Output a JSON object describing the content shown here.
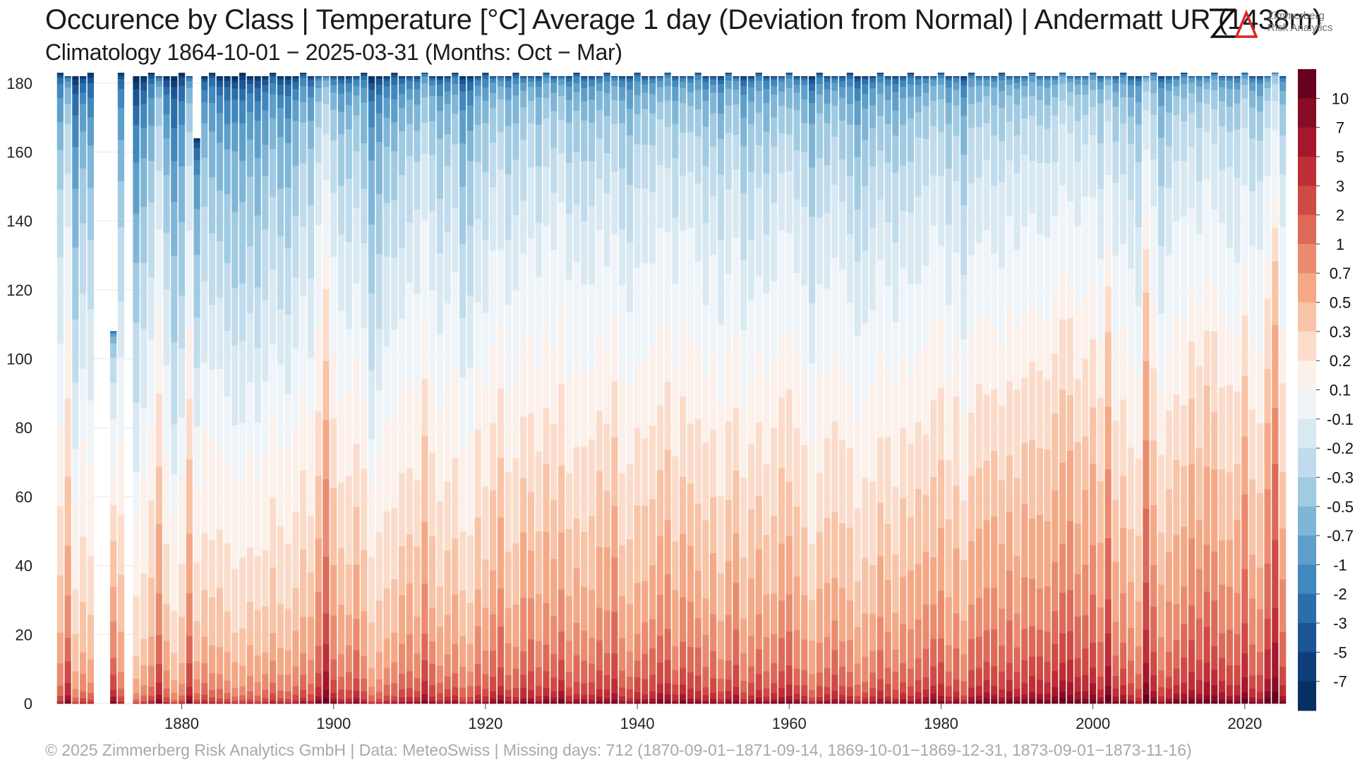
{
  "chart_data": {
    "type": "bar",
    "stacked": true,
    "title": "Occurence by Class | Temperature [°C] Average 1 day (Deviation from Normal) | Andermatt  UR (1438m)",
    "subtitle": "Climatology 1864-10-01 − 2025-03-31 (Months: Oct − Mar)",
    "footer": "©  2025 Zimmerberg Risk Analytics GmbH | Data: MeteoSwiss | Missing days: 712 (1870-09-01−1871-09-14, 1869-10-01−1869-12-31, 1873-09-01−1873-11-16)",
    "xlabel": "",
    "ylabel": "",
    "x_range": [
      1864,
      2025
    ],
    "ylim": [
      0,
      182
    ],
    "y_ticks": [
      0,
      20,
      40,
      60,
      80,
      100,
      120,
      140,
      160,
      180
    ],
    "x_ticks": [
      1880,
      1900,
      1920,
      1940,
      1960,
      1980,
      2000,
      2020
    ],
    "grid": true,
    "colorbar": {
      "labels": [
        "10",
        "7",
        "5",
        "3",
        "2",
        "1",
        "0.7",
        "0.5",
        "0.3",
        "0.2",
        "0.1",
        "-0.1",
        "-0.2",
        "-0.3",
        "-0.5",
        "-0.7",
        "-1",
        "-2",
        "-3",
        "-5",
        "-7"
      ],
      "colors": [
        "#67001f",
        "#860d25",
        "#a5172c",
        "#be2e36",
        "#cf4a45",
        "#dd6a58",
        "#ea8b6f",
        "#f4a886",
        "#f8c3a6",
        "#fbdccb",
        "#fbf0ea",
        "#eef4f8",
        "#d9e9f2",
        "#c0dcec",
        "#a1cbe2",
        "#7fb6d7",
        "#5e9fca",
        "#4088bd",
        "#2b6faa",
        "#1b5593",
        "#0e3e77",
        "#053061"
      ]
    },
    "missing_years": [
      1869,
      1870,
      1873
    ],
    "partial_years": {
      "1871": 108,
      "1882": 164
    },
    "totals": {
      "regular": 182,
      "leap": 183
    },
    "warm_share_by_year": [
      [
        1864,
        0.44
      ],
      [
        1865,
        0.61
      ],
      [
        1866,
        0.32
      ],
      [
        1867,
        0.42
      ],
      [
        1868,
        0.38
      ],
      [
        1871,
        0.63
      ],
      [
        1872,
        0.42
      ],
      [
        1874,
        0.3
      ],
      [
        1875,
        0.36
      ],
      [
        1876,
        0.44
      ],
      [
        1877,
        0.62
      ],
      [
        1878,
        0.4
      ],
      [
        1879,
        0.3
      ],
      [
        1880,
        0.36
      ],
      [
        1881,
        0.6
      ],
      [
        1882,
        0.38
      ],
      [
        1883,
        0.44
      ],
      [
        1884,
        0.42
      ],
      [
        1885,
        0.4
      ],
      [
        1886,
        0.38
      ],
      [
        1887,
        0.36
      ],
      [
        1888,
        0.36
      ],
      [
        1889,
        0.4
      ],
      [
        1890,
        0.36
      ],
      [
        1891,
        0.4
      ],
      [
        1892,
        0.46
      ],
      [
        1893,
        0.41
      ],
      [
        1894,
        0.4
      ],
      [
        1895,
        0.44
      ],
      [
        1896,
        0.5
      ],
      [
        1897,
        0.46
      ],
      [
        1898,
        0.6
      ],
      [
        1899,
        0.72
      ],
      [
        1900,
        0.56
      ],
      [
        1901,
        0.48
      ],
      [
        1902,
        0.5
      ],
      [
        1903,
        0.55
      ],
      [
        1904,
        0.48
      ],
      [
        1905,
        0.35
      ],
      [
        1906,
        0.4
      ],
      [
        1907,
        0.45
      ],
      [
        1908,
        0.46
      ],
      [
        1909,
        0.5
      ],
      [
        1910,
        0.52
      ],
      [
        1911,
        0.5
      ],
      [
        1912,
        0.61
      ],
      [
        1913,
        0.52
      ],
      [
        1914,
        0.47
      ],
      [
        1915,
        0.5
      ],
      [
        1916,
        0.53
      ],
      [
        1917,
        0.41
      ],
      [
        1918,
        0.43
      ],
      [
        1919,
        0.53
      ],
      [
        1920,
        0.5
      ],
      [
        1921,
        0.57
      ],
      [
        1922,
        0.6
      ],
      [
        1923,
        0.5
      ],
      [
        1924,
        0.51
      ],
      [
        1925,
        0.58
      ],
      [
        1926,
        0.59
      ],
      [
        1927,
        0.53
      ],
      [
        1928,
        0.6
      ],
      [
        1929,
        0.57
      ],
      [
        1930,
        0.63
      ],
      [
        1931,
        0.52
      ],
      [
        1932,
        0.55
      ],
      [
        1933,
        0.53
      ],
      [
        1934,
        0.53
      ],
      [
        1935,
        0.59
      ],
      [
        1936,
        0.56
      ],
      [
        1937,
        0.62
      ],
      [
        1938,
        0.52
      ],
      [
        1939,
        0.51
      ],
      [
        1940,
        0.54
      ],
      [
        1941,
        0.55
      ],
      [
        1942,
        0.57
      ],
      [
        1943,
        0.61
      ],
      [
        1944,
        0.6
      ],
      [
        1945,
        0.53
      ],
      [
        1946,
        0.61
      ],
      [
        1947,
        0.58
      ],
      [
        1948,
        0.57
      ],
      [
        1949,
        0.52
      ],
      [
        1950,
        0.56
      ],
      [
        1951,
        0.48
      ],
      [
        1952,
        0.56
      ],
      [
        1953,
        0.59
      ],
      [
        1954,
        0.47
      ],
      [
        1955,
        0.52
      ],
      [
        1956,
        0.56
      ],
      [
        1957,
        0.52
      ],
      [
        1958,
        0.55
      ],
      [
        1959,
        0.59
      ],
      [
        1960,
        0.59
      ],
      [
        1961,
        0.56
      ],
      [
        1962,
        0.53
      ],
      [
        1963,
        0.42
      ],
      [
        1964,
        0.52
      ],
      [
        1965,
        0.53
      ],
      [
        1966,
        0.56
      ],
      [
        1967,
        0.53
      ],
      [
        1968,
        0.51
      ],
      [
        1969,
        0.45
      ],
      [
        1970,
        0.48
      ],
      [
        1971,
        0.51
      ],
      [
        1972,
        0.56
      ],
      [
        1973,
        0.53
      ],
      [
        1974,
        0.5
      ],
      [
        1975,
        0.55
      ],
      [
        1976,
        0.52
      ],
      [
        1977,
        0.56
      ],
      [
        1978,
        0.57
      ],
      [
        1979,
        0.61
      ],
      [
        1980,
        0.61
      ],
      [
        1981,
        0.52
      ],
      [
        1982,
        0.58
      ],
      [
        1983,
        0.46
      ],
      [
        1984,
        0.59
      ],
      [
        1985,
        0.61
      ],
      [
        1986,
        0.62
      ],
      [
        1987,
        0.6
      ],
      [
        1988,
        0.57
      ],
      [
        1989,
        0.63
      ],
      [
        1990,
        0.6
      ],
      [
        1991,
        0.62
      ],
      [
        1992,
        0.64
      ],
      [
        1993,
        0.63
      ],
      [
        1994,
        0.61
      ],
      [
        1995,
        0.65
      ],
      [
        1996,
        0.69
      ],
      [
        1997,
        0.68
      ],
      [
        1998,
        0.63
      ],
      [
        1999,
        0.65
      ],
      [
        2000,
        0.67
      ],
      [
        2001,
        0.58
      ],
      [
        2002,
        0.73
      ],
      [
        2003,
        0.58
      ],
      [
        2004,
        0.6
      ],
      [
        2005,
        0.54
      ],
      [
        2006,
        0.52
      ],
      [
        2007,
        0.78
      ],
      [
        2008,
        0.64
      ],
      [
        2009,
        0.5
      ],
      [
        2010,
        0.57
      ],
      [
        2011,
        0.62
      ],
      [
        2012,
        0.61
      ],
      [
        2013,
        0.66
      ],
      [
        2014,
        0.63
      ],
      [
        2015,
        0.68
      ],
      [
        2016,
        0.66
      ],
      [
        2017,
        0.62
      ],
      [
        2018,
        0.6
      ],
      [
        2019,
        0.59
      ],
      [
        2020,
        0.7
      ],
      [
        2021,
        0.58
      ],
      [
        2022,
        0.56
      ],
      [
        2023,
        0.71
      ],
      [
        2024,
        0.8
      ],
      [
        2025,
        0.6
      ]
    ]
  }
}
